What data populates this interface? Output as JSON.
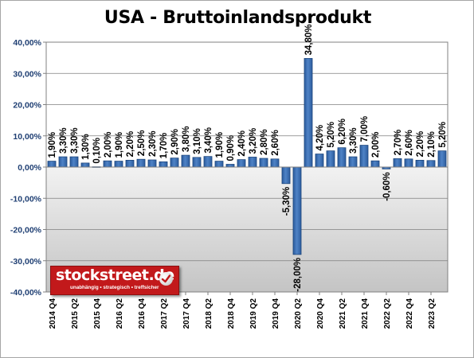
{
  "chart_data": {
    "type": "bar",
    "title": "USA - Bruttoinlandsprodukt",
    "yticks": [
      "40,00%",
      "30,00%",
      "20,00%",
      "10,00%",
      "0,00%",
      "-10,00%",
      "-20,00%",
      "-30,00%",
      "-40,00%"
    ],
    "ylim": [
      -40,
      40
    ],
    "grid": true,
    "values": [
      1.9,
      3.3,
      3.3,
      1.3,
      0.1,
      2.0,
      1.9,
      2.2,
      2.5,
      2.3,
      1.7,
      2.9,
      3.8,
      3.1,
      3.4,
      1.9,
      0.9,
      2.4,
      3.2,
      2.8,
      2.6,
      -5.3,
      -28.0,
      34.8,
      4.2,
      5.2,
      6.2,
      3.3,
      7.0,
      2.0,
      -0.6,
      2.7,
      2.6,
      2.2,
      2.1,
      5.2
    ],
    "value_labels": [
      "1,90%",
      "3,30%",
      "3,30%",
      "1,30%",
      "0,10%",
      "2,00%",
      "1,90%",
      "2,20%",
      "2,50%",
      "2,30%",
      "1,70%",
      "2,90%",
      "3,80%",
      "3,10%",
      "3,40%",
      "1,90%",
      "0,90%",
      "2,40%",
      "3,20%",
      "2,80%",
      "2,60%",
      "-5,30%",
      "-28,00%",
      "34,80%",
      "4,20%",
      "5,20%",
      "6,20%",
      "3,30%",
      "7,00%",
      "2,00%",
      "-0,60%",
      "2,70%",
      "2,60%",
      "2,20%",
      "2,10%",
      "5,20%"
    ],
    "xtick_labels": [
      "2014 Q4",
      "2015 Q2",
      "2015 Q4",
      "2016 Q2",
      "2016 Q4",
      "2017 Q2",
      "2017 Q4",
      "2018 Q2",
      "2018 Q4",
      "2019 Q2",
      "2019 Q4",
      "2020 Q2",
      "2020 Q4",
      "2021 Q2",
      "2021 Q4",
      "2022 Q2",
      "2022 Q4",
      "2023 Q2"
    ],
    "colors": {
      "bar": "#3d6fb3",
      "bar_edge": "#163f75",
      "tick_text": "#1f3f73"
    }
  },
  "logo": {
    "name": "stockstreet.de",
    "tagline": "unabhängig • strategisch • treffsicher"
  }
}
